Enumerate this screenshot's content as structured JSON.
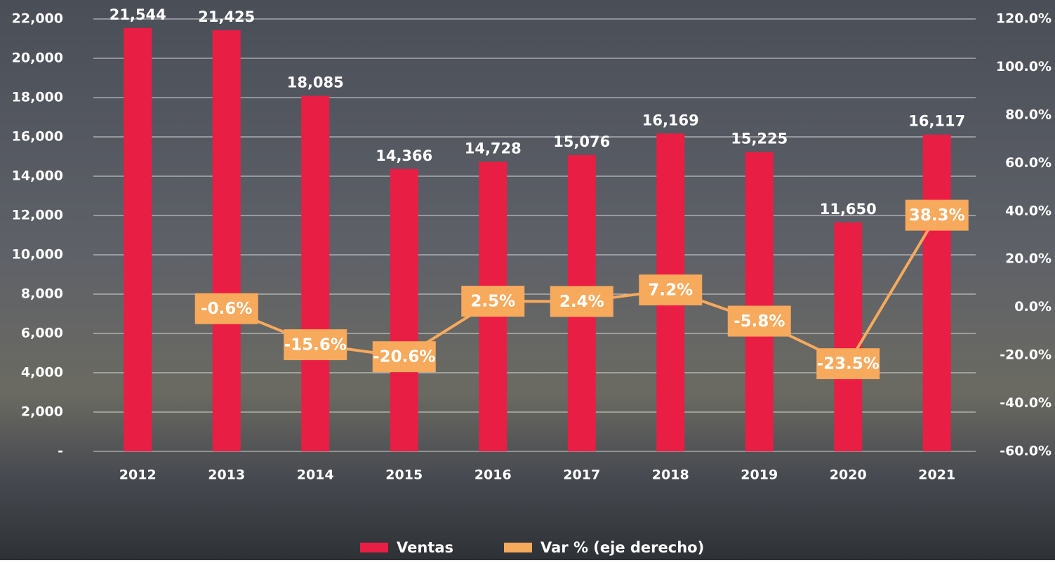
{
  "chart_data": {
    "type": "bar_line",
    "categories": [
      "2012",
      "2013",
      "2014",
      "2015",
      "2016",
      "2017",
      "2018",
      "2019",
      "2020",
      "2021"
    ],
    "series": [
      {
        "name": "Ventas",
        "type": "bar",
        "color": "#e91e45",
        "values": [
          21544,
          21425,
          18085,
          14366,
          14728,
          15076,
          16169,
          15225,
          11650,
          16117
        ],
        "value_labels": [
          "21,544",
          "21,425",
          "18,085",
          "14,366",
          "14,728",
          "15,076",
          "16,169",
          "15,225",
          "11,650",
          "16,117"
        ]
      },
      {
        "name": "Var % (eje derecho)",
        "type": "line",
        "axis": "y2",
        "color": "#f7a95c",
        "values": [
          null,
          -0.6,
          -15.6,
          -20.6,
          2.5,
          2.4,
          7.2,
          -5.8,
          -23.5,
          38.3
        ],
        "value_labels": [
          null,
          "-0.6%",
          "-15.6%",
          "-20.6%",
          "2.5%",
          "2.4%",
          "7.2%",
          "-5.8%",
          "-23.5%",
          "38.3%"
        ]
      }
    ],
    "ylim": [
      0,
      22000
    ],
    "yticks": [
      {
        "value": 0,
        "label": "-"
      },
      {
        "value": 2000,
        "label": "2,000"
      },
      {
        "value": 4000,
        "label": "4,000"
      },
      {
        "value": 6000,
        "label": "6,000"
      },
      {
        "value": 8000,
        "label": "8,000"
      },
      {
        "value": 10000,
        "label": "10,000"
      },
      {
        "value": 12000,
        "label": "12,000"
      },
      {
        "value": 14000,
        "label": "14,000"
      },
      {
        "value": 16000,
        "label": "16,000"
      },
      {
        "value": 18000,
        "label": "18,000"
      },
      {
        "value": 20000,
        "label": "20,000"
      },
      {
        "value": 22000,
        "label": "22,000"
      }
    ],
    "y2lim": [
      -60,
      120
    ],
    "y2ticks": [
      {
        "value": -60,
        "label": "-60.0%"
      },
      {
        "value": -40,
        "label": "-40.0%"
      },
      {
        "value": -20,
        "label": "-20.0%"
      },
      {
        "value": 0,
        "label": "0.0%"
      },
      {
        "value": 20,
        "label": "20.0%"
      },
      {
        "value": 40,
        "label": "40.0%"
      },
      {
        "value": 60,
        "label": "60.0%"
      },
      {
        "value": 80,
        "label": "80.0%"
      },
      {
        "value": 100,
        "label": "100.0%"
      },
      {
        "value": 120,
        "label": "120.0%"
      }
    ],
    "grid": true,
    "legend": "bottom"
  }
}
